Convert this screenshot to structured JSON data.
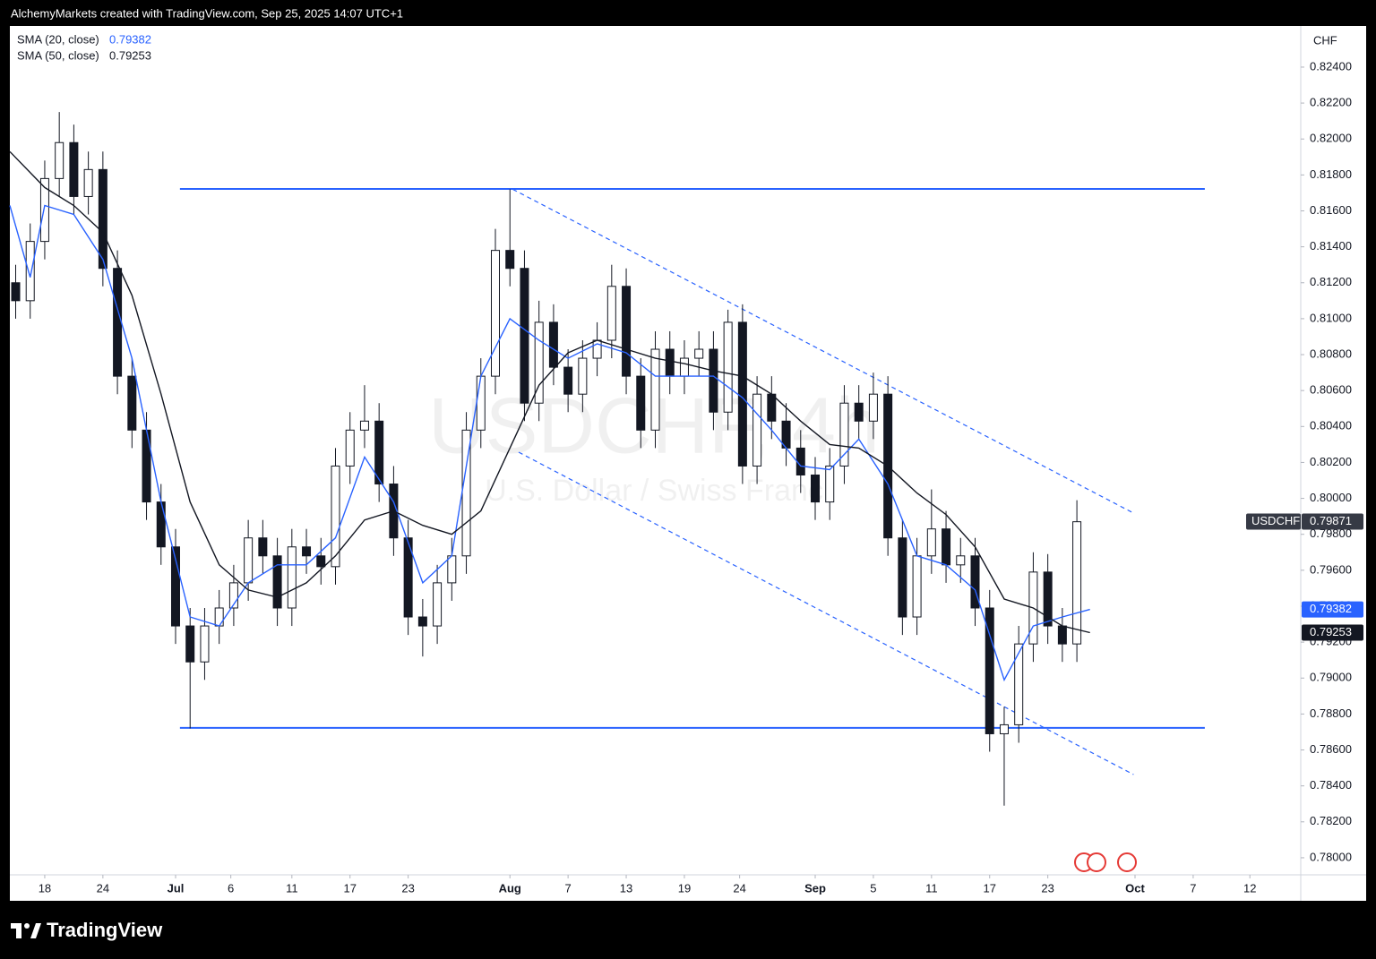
{
  "header": {
    "title": "AlchemyMarkets created with TradingView.com, Sep 25, 2025 14:07 UTC+1"
  },
  "footer": {
    "brand": "TradingView"
  },
  "chart_data": {
    "type": "candlestick",
    "watermark": {
      "symbol": "USDCHF, 4h",
      "description": "U.S. Dollar / Swiss Franc"
    },
    "currency": "CHF",
    "xlim": [
      -2.4,
      86.4
    ],
    "ylim": [
      0.77905,
      0.82629
    ],
    "xticks": [
      {
        "value": 0,
        "label": "18"
      },
      {
        "value": 4,
        "label": "24"
      },
      {
        "value": 9,
        "label": "Jul"
      },
      {
        "value": 12.8,
        "label": "6"
      },
      {
        "value": 17,
        "label": "11"
      },
      {
        "value": 21,
        "label": "17"
      },
      {
        "value": 25,
        "label": "23"
      },
      {
        "value": 32,
        "label": "Aug"
      },
      {
        "value": 36,
        "label": "7"
      },
      {
        "value": 40,
        "label": "13"
      },
      {
        "value": 44,
        "label": "19"
      },
      {
        "value": 47.8,
        "label": "24"
      },
      {
        "value": 53,
        "label": "Sep"
      },
      {
        "value": 57,
        "label": "5"
      },
      {
        "value": 61,
        "label": "11"
      },
      {
        "value": 65,
        "label": "17"
      },
      {
        "value": 69,
        "label": "23"
      },
      {
        "value": 75,
        "label": "Oct"
      },
      {
        "value": 79,
        "label": "7"
      },
      {
        "value": 82.9,
        "label": "12"
      }
    ],
    "yticks": [
      {
        "value": 0.824,
        "label": "0.82400"
      },
      {
        "value": 0.822,
        "label": "0.82200"
      },
      {
        "value": 0.82,
        "label": "0.82000"
      },
      {
        "value": 0.818,
        "label": "0.81800"
      },
      {
        "value": 0.816,
        "label": "0.81600"
      },
      {
        "value": 0.814,
        "label": "0.81400"
      },
      {
        "value": 0.812,
        "label": "0.81200"
      },
      {
        "value": 0.81,
        "label": "0.81000"
      },
      {
        "value": 0.808,
        "label": "0.80800"
      },
      {
        "value": 0.806,
        "label": "0.80600"
      },
      {
        "value": 0.804,
        "label": "0.80400"
      },
      {
        "value": 0.802,
        "label": "0.80200"
      },
      {
        "value": 0.8,
        "label": "0.80000"
      },
      {
        "value": 0.798,
        "label": "0.79800"
      },
      {
        "value": 0.796,
        "label": "0.79600"
      },
      {
        "value": 0.794,
        "label": "0.79400"
      },
      {
        "value": 0.792,
        "label": "0.79200"
      },
      {
        "value": 0.79,
        "label": "0.79000"
      },
      {
        "value": 0.788,
        "label": "0.78800"
      },
      {
        "value": 0.786,
        "label": "0.78600"
      },
      {
        "value": 0.784,
        "label": "0.78400"
      },
      {
        "value": 0.782,
        "label": "0.78200"
      },
      {
        "value": 0.78,
        "label": "0.78000"
      }
    ],
    "x": [
      -2,
      -1,
      0,
      1,
      2,
      3,
      4,
      5,
      6,
      7,
      8,
      9,
      10,
      11,
      12,
      13,
      14,
      15,
      16,
      17,
      18,
      19,
      20,
      21,
      22,
      23,
      24,
      25,
      26,
      27,
      28,
      29,
      30,
      31,
      32,
      33,
      34,
      35,
      36,
      37,
      38,
      39,
      40,
      41,
      42,
      43,
      44,
      45,
      46,
      47,
      48,
      49,
      50,
      51,
      52,
      53,
      54,
      55,
      56,
      57,
      58,
      59,
      60,
      61,
      62,
      63,
      64,
      65,
      66,
      67,
      68,
      69,
      70,
      71
    ],
    "open": [
      0.812,
      0.811,
      0.8143,
      0.8178,
      0.8198,
      0.8168,
      0.8183,
      0.8128,
      0.8068,
      0.8038,
      0.7998,
      0.7973,
      0.7929,
      0.7909,
      0.7929,
      0.7939,
      0.7953,
      0.7978,
      0.7968,
      0.7939,
      0.7973,
      0.7968,
      0.7962,
      0.8018,
      0.8038,
      0.8043,
      0.8008,
      0.7978,
      0.7934,
      0.7929,
      0.7953,
      0.7968,
      0.8038,
      0.8068,
      0.8138,
      0.8128,
      0.8053,
      0.8098,
      0.8073,
      0.8058,
      0.8078,
      0.8088,
      0.8118,
      0.8068,
      0.8038,
      0.8083,
      0.8068,
      0.8078,
      0.8083,
      0.8048,
      0.8098,
      0.8018,
      0.8058,
      0.8043,
      0.8028,
      0.8013,
      0.7998,
      0.8018,
      0.8053,
      0.8043,
      0.8058,
      0.7978,
      0.7934,
      0.7968,
      0.7983,
      0.7963,
      0.7968,
      0.7939,
      0.7869,
      0.7874,
      0.7919,
      0.7959,
      0.7929,
      0.7919
    ],
    "high": [
      0.813,
      0.8153,
      0.8188,
      0.8215,
      0.8208,
      0.8193,
      0.8193,
      0.8138,
      0.8078,
      0.8048,
      0.8008,
      0.7983,
      0.7939,
      0.7939,
      0.7949,
      0.7963,
      0.7988,
      0.7988,
      0.7978,
      0.7983,
      0.7983,
      0.7978,
      0.8028,
      0.8048,
      0.8063,
      0.8053,
      0.8018,
      0.7988,
      0.7944,
      0.7963,
      0.7978,
      0.8048,
      0.8078,
      0.815,
      0.8172,
      0.8138,
      0.811,
      0.8108,
      0.8083,
      0.8088,
      0.8098,
      0.813,
      0.8128,
      0.8078,
      0.8093,
      0.8093,
      0.8088,
      0.8093,
      0.8093,
      0.8105,
      0.8108,
      0.8068,
      0.8068,
      0.8053,
      0.8038,
      0.8023,
      0.8028,
      0.8063,
      0.8063,
      0.807,
      0.8068,
      0.7988,
      0.7978,
      0.8005,
      0.7993,
      0.7978,
      0.7978,
      0.7949,
      0.7884,
      0.7929,
      0.797,
      0.7969,
      0.7939,
      0.7999
    ],
    "low": [
      0.81,
      0.81,
      0.8133,
      0.8168,
      0.8158,
      0.8158,
      0.8118,
      0.8058,
      0.8028,
      0.7988,
      0.7963,
      0.7919,
      0.7872,
      0.7899,
      0.7919,
      0.7929,
      0.7943,
      0.7958,
      0.7929,
      0.7929,
      0.7958,
      0.7952,
      0.7952,
      0.8008,
      0.8028,
      0.7998,
      0.7968,
      0.7924,
      0.7912,
      0.7919,
      0.7943,
      0.7958,
      0.8028,
      0.8058,
      0.8118,
      0.8043,
      0.8043,
      0.8063,
      0.8048,
      0.8048,
      0.8068,
      0.8078,
      0.8058,
      0.8028,
      0.8028,
      0.8058,
      0.8058,
      0.8068,
      0.8038,
      0.8038,
      0.8008,
      0.8008,
      0.8033,
      0.8018,
      0.8003,
      0.7988,
      0.7988,
      0.8008,
      0.8033,
      0.8033,
      0.7968,
      0.7924,
      0.7924,
      0.7958,
      0.7953,
      0.7953,
      0.7929,
      0.7859,
      0.7829,
      0.7864,
      0.7909,
      0.7919,
      0.7909,
      0.7909
    ],
    "close": [
      0.811,
      0.8143,
      0.8178,
      0.8198,
      0.8168,
      0.8183,
      0.8128,
      0.8068,
      0.8038,
      0.7998,
      0.7973,
      0.7929,
      0.7909,
      0.7929,
      0.7939,
      0.7953,
      0.7978,
      0.7968,
      0.7939,
      0.7973,
      0.7968,
      0.7962,
      0.8018,
      0.8038,
      0.8043,
      0.8008,
      0.7978,
      0.7934,
      0.7929,
      0.7953,
      0.7968,
      0.8038,
      0.8068,
      0.8138,
      0.8128,
      0.8053,
      0.8098,
      0.8073,
      0.8058,
      0.8078,
      0.8088,
      0.8118,
      0.8068,
      0.8038,
      0.8083,
      0.8068,
      0.8078,
      0.8083,
      0.8048,
      0.8098,
      0.8018,
      0.8058,
      0.8043,
      0.8028,
      0.8013,
      0.7998,
      0.8018,
      0.8053,
      0.8043,
      0.8058,
      0.7978,
      0.7934,
      0.7968,
      0.7983,
      0.7963,
      0.7968,
      0.7939,
      0.7869,
      0.7874,
      0.7919,
      0.7959,
      0.7929,
      0.7919,
      0.7987
    ],
    "up_color": "#ffffff",
    "down_color": "#131722",
    "last_price": {
      "symbol": "USDCHF",
      "value": 0.79871
    },
    "series": [
      {
        "name": "SMA (20, close)",
        "color": "#2962ff",
        "last": 0.79382,
        "x": [
          -2.4,
          -1,
          0,
          2,
          4,
          6,
          8,
          10,
          12,
          14,
          16,
          18,
          20,
          22,
          24,
          26,
          28,
          30,
          32,
          34,
          36,
          38,
          40,
          42,
          44,
          46,
          48,
          50,
          52,
          54,
          56,
          58,
          60,
          62,
          64,
          66,
          68,
          70,
          71.9
        ],
        "values": [
          0.8163,
          0.8123,
          0.8163,
          0.8158,
          0.8133,
          0.8078,
          0.7998,
          0.7934,
          0.7929,
          0.7953,
          0.7963,
          0.7963,
          0.7978,
          0.8023,
          0.7998,
          0.7953,
          0.7968,
          0.8068,
          0.81,
          0.8088,
          0.8078,
          0.8086,
          0.8081,
          0.8068,
          0.8068,
          0.8068,
          0.8056,
          0.8038,
          0.8018,
          0.8016,
          0.8033,
          0.8008,
          0.7968,
          0.7963,
          0.7949,
          0.7899,
          0.7929,
          0.7934,
          0.79382
        ]
      },
      {
        "name": "SMA (50, close)",
        "color": "#131722",
        "last": 0.79253,
        "x": [
          -2.4,
          0,
          2,
          4,
          6,
          8,
          10,
          12,
          14,
          16,
          18,
          20,
          22,
          24,
          26,
          28,
          30,
          32,
          34,
          36,
          38,
          40,
          42,
          44,
          46,
          48,
          50,
          52,
          54,
          56,
          58,
          60,
          62,
          64,
          66,
          68,
          70,
          71.9
        ],
        "values": [
          0.8193,
          0.8173,
          0.8163,
          0.8148,
          0.8113,
          0.8058,
          0.7998,
          0.7963,
          0.7949,
          0.7945,
          0.7953,
          0.7968,
          0.7988,
          0.7993,
          0.7985,
          0.798,
          0.7993,
          0.8028,
          0.8063,
          0.8081,
          0.8088,
          0.8083,
          0.8078,
          0.8075,
          0.8071,
          0.8068,
          0.8058,
          0.8043,
          0.803,
          0.8028,
          0.8018,
          0.8003,
          0.7991,
          0.7973,
          0.7944,
          0.7939,
          0.7929,
          0.79253
        ]
      }
    ],
    "drawings": [
      {
        "style": "solid",
        "color": "#2962ff",
        "x": [
          9.3,
          79.8
        ],
        "y": [
          0.81722,
          0.81722
        ]
      },
      {
        "style": "solid",
        "color": "#2962ff",
        "x": [
          9.3,
          79.8
        ],
        "y": [
          0.78723,
          0.78723
        ]
      },
      {
        "style": "dashed",
        "color": "#2962ff",
        "x": [
          32.2,
          74.9
        ],
        "y": [
          0.8172,
          0.79918
        ]
      },
      {
        "style": "dashed",
        "color": "#2962ff",
        "x": [
          32.6,
          74.9
        ],
        "y": [
          0.80257,
          0.78463
        ]
      }
    ]
  }
}
